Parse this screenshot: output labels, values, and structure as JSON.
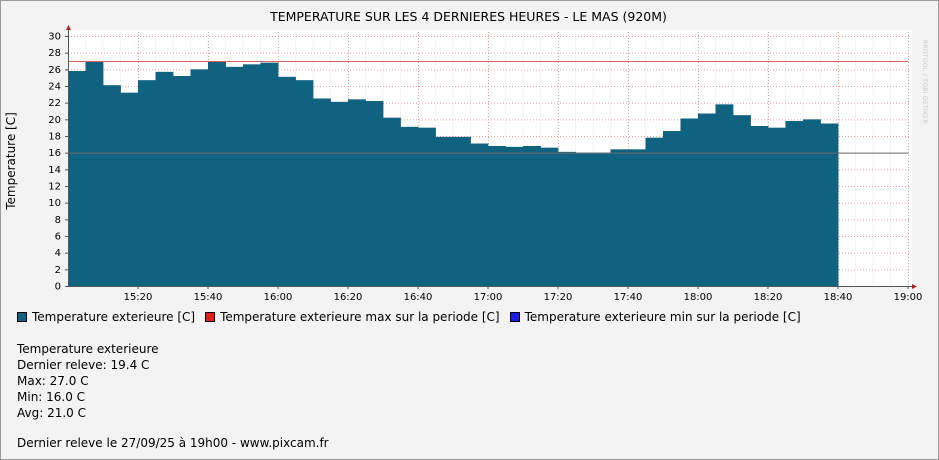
{
  "title": "TEMPERATURE SUR LES 4 DERNIERES HEURES - LE MAS (920M)",
  "watermark": "RRDTOOL / TOBI OETIKER",
  "colors": {
    "area": "#0f6381",
    "max_line": "#e06060",
    "min_line": "#6a6a6a",
    "legend_area": "#0f6381",
    "legend_max": "#e21b1b",
    "legend_min": "#1b1be6",
    "grid": "#e8a0a0"
  },
  "legend": [
    {
      "label": "Temperature exterieure [C]",
      "color_key": "legend_area"
    },
    {
      "label": "Temperature exterieure max sur la periode [C]",
      "color_key": "legend_max"
    },
    {
      "label": "Temperature exterieure min sur la periode [C]",
      "color_key": "legend_min"
    }
  ],
  "stats": {
    "heading": "Temperature exterieure",
    "last": "Dernier releve: 19.4 C",
    "max": "Max: 27.0 C",
    "min": "Min: 16.0 C",
    "avg": "Avg: 21.0 C"
  },
  "footer": "Dernier releve le 27/09/25 à 19h00 - www.pixcam.fr",
  "chart_data": {
    "type": "area",
    "title": "TEMPERATURE SUR LES 4 DERNIERES HEURES - LE MAS (920M)",
    "ylabel": "Temperature [C]",
    "xlabel": "",
    "ylim": [
      0,
      30
    ],
    "yticks": [
      0,
      2,
      4,
      6,
      8,
      10,
      12,
      14,
      16,
      18,
      20,
      22,
      24,
      26,
      28,
      30
    ],
    "xlim": [
      "15:00",
      "19:00"
    ],
    "xticks": [
      "15:20",
      "15:40",
      "16:00",
      "16:20",
      "16:40",
      "17:00",
      "17:20",
      "17:40",
      "18:00",
      "18:20",
      "18:40",
      "19:00"
    ],
    "grid": true,
    "legend_placement": "bottom",
    "series": [
      {
        "name": "Temperature exterieure [C]",
        "step_minutes": 5,
        "start": "15:00",
        "values": [
          25.8,
          27.0,
          24.1,
          23.2,
          24.7,
          25.7,
          25.2,
          26.0,
          27.0,
          26.3,
          26.6,
          26.8,
          25.1,
          24.7,
          22.5,
          22.1,
          22.4,
          22.2,
          20.2,
          19.1,
          19.0,
          17.9,
          17.9,
          17.1,
          16.8,
          16.7,
          16.8,
          16.6,
          16.1,
          16.0,
          16.0,
          16.4,
          16.4,
          17.8,
          18.6,
          20.1,
          20.7,
          21.8,
          20.5,
          19.2,
          19.0,
          19.8,
          20.0,
          19.5
        ]
      },
      {
        "name": "Temperature exterieure max sur la periode [C]",
        "value": 27.0
      },
      {
        "name": "Temperature exterieure min sur la periode [C]",
        "value": 16.0
      }
    ]
  }
}
